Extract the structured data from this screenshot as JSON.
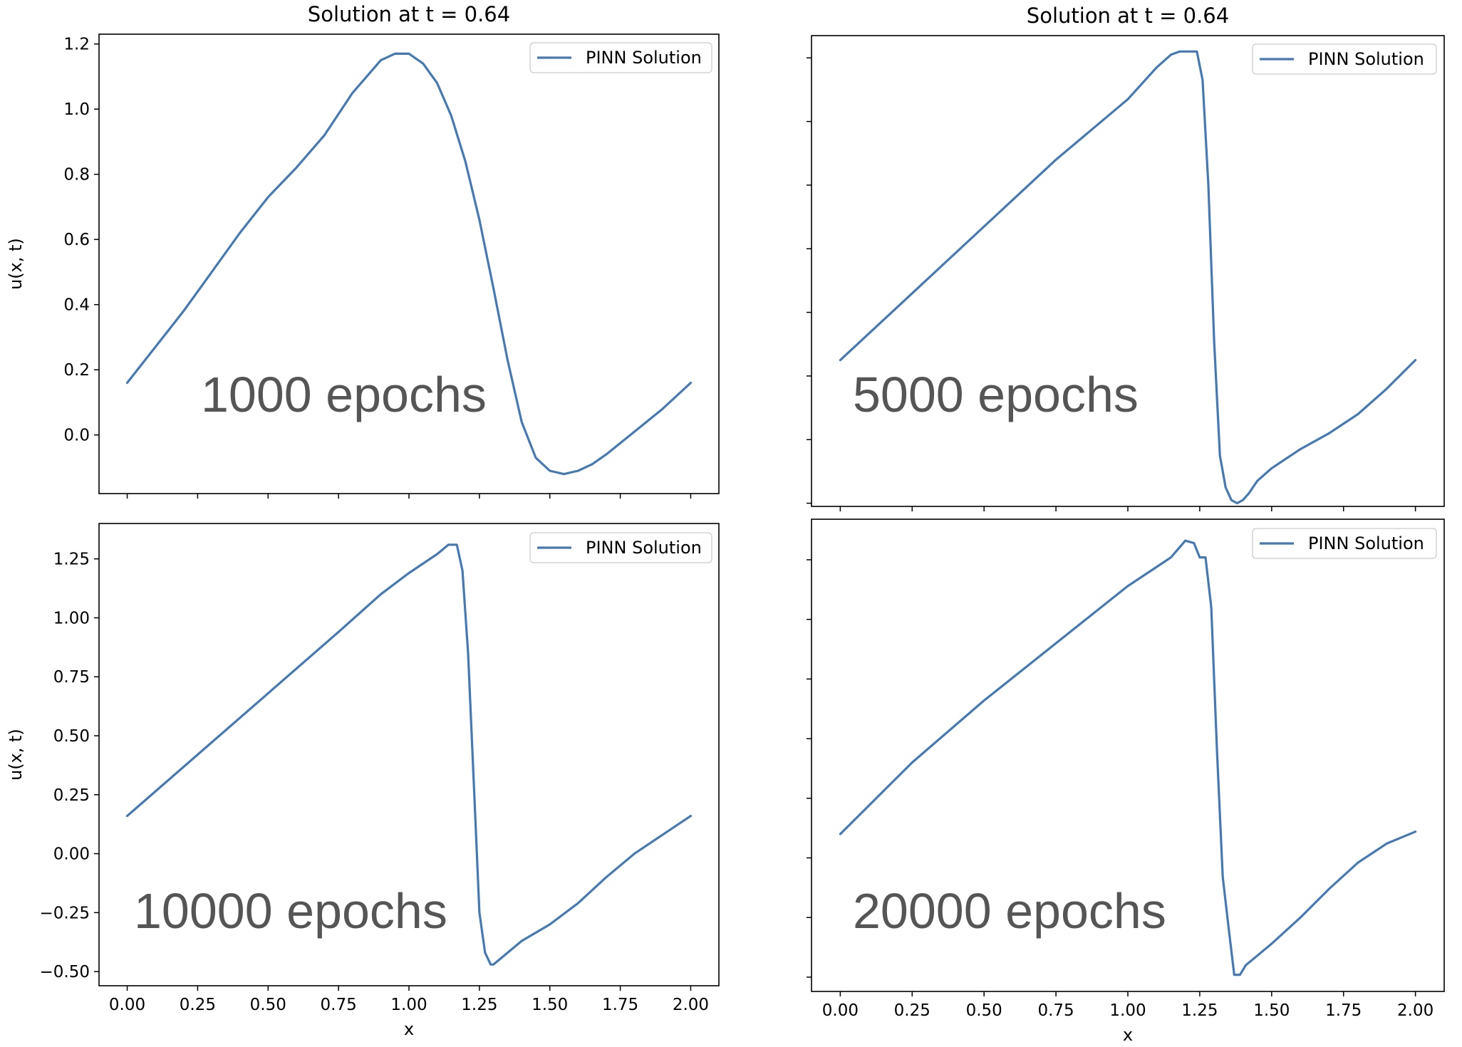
{
  "chart_data": [
    {
      "type": "line",
      "title": "Solution at t = 0.64",
      "xlabel": "",
      "ylabel": "u(x, t)",
      "xlim": [
        -0.1,
        2.1
      ],
      "ylim": [
        -0.18,
        1.23
      ],
      "xticks": [
        0,
        0.25,
        0.5,
        0.75,
        1.0,
        1.25,
        1.5,
        1.75,
        2.0
      ],
      "xtick_labels": [],
      "yticks": [
        0.0,
        0.2,
        0.4,
        0.6,
        0.8,
        1.0,
        1.2
      ],
      "ytick_labels": [
        "0.0",
        "0.2",
        "0.4",
        "0.6",
        "0.8",
        "1.0",
        "1.2"
      ],
      "legend": {
        "label": "PINN Solution",
        "placement": "upper right"
      },
      "annotation": "1000 epochs",
      "series": [
        {
          "name": "PINN Solution",
          "color": "#4479b3",
          "x": [
            0,
            0.1,
            0.2,
            0.3,
            0.4,
            0.5,
            0.6,
            0.7,
            0.8,
            0.9,
            0.95,
            1.0,
            1.05,
            1.1,
            1.15,
            1.2,
            1.25,
            1.3,
            1.35,
            1.4,
            1.45,
            1.5,
            1.55,
            1.6,
            1.65,
            1.7,
            1.8,
            1.9,
            2.0
          ],
          "y": [
            0.16,
            0.27,
            0.38,
            0.5,
            0.62,
            0.73,
            0.82,
            0.92,
            1.05,
            1.15,
            1.17,
            1.17,
            1.14,
            1.08,
            0.98,
            0.84,
            0.66,
            0.45,
            0.23,
            0.04,
            -0.07,
            -0.11,
            -0.12,
            -0.11,
            -0.09,
            -0.06,
            0.01,
            0.08,
            0.16
          ]
        }
      ]
    },
    {
      "type": "line",
      "title": "Solution at t = 0.64",
      "xlabel": "",
      "ylabel": "",
      "xlim": [
        -0.1,
        2.1
      ],
      "ylim": [
        -0.16,
        1.32
      ],
      "xticks": [
        0,
        0.25,
        0.5,
        0.75,
        1.0,
        1.25,
        1.5,
        1.75,
        2.0
      ],
      "xtick_labels": [],
      "yticks": [
        -0.15,
        0.05,
        0.25,
        0.45,
        0.65,
        0.85,
        1.05,
        1.25
      ],
      "ytick_labels": [],
      "legend": {
        "label": "PINN Solution",
        "placement": "upper right"
      },
      "annotation": "5000 epochs",
      "series": [
        {
          "name": "PINN Solution",
          "color": "#4479b3",
          "x": [
            0,
            0.25,
            0.5,
            0.75,
            1.0,
            1.1,
            1.15,
            1.18,
            1.2,
            1.22,
            1.24,
            1.26,
            1.28,
            1.3,
            1.32,
            1.34,
            1.36,
            1.38,
            1.4,
            1.42,
            1.45,
            1.5,
            1.6,
            1.7,
            1.8,
            1.9,
            2.0
          ],
          "y": [
            0.3,
            0.51,
            0.72,
            0.93,
            1.12,
            1.22,
            1.26,
            1.27,
            1.27,
            1.27,
            1.27,
            1.18,
            0.85,
            0.36,
            0.0,
            -0.1,
            -0.14,
            -0.15,
            -0.14,
            -0.12,
            -0.08,
            -0.04,
            0.02,
            0.07,
            0.13,
            0.21,
            0.3
          ]
        }
      ]
    },
    {
      "type": "line",
      "title": "",
      "xlabel": "x",
      "ylabel": "u(x, t)",
      "xlim": [
        -0.1,
        2.1
      ],
      "ylim": [
        -0.56,
        1.4
      ],
      "xticks": [
        0,
        0.25,
        0.5,
        0.75,
        1.0,
        1.25,
        1.5,
        1.75,
        2.0
      ],
      "xtick_labels": [
        "0.00",
        "0.25",
        "0.50",
        "0.75",
        "1.00",
        "1.25",
        "1.50",
        "1.75",
        "2.00"
      ],
      "yticks": [
        -0.5,
        -0.25,
        0.0,
        0.25,
        0.5,
        0.75,
        1.0,
        1.25
      ],
      "ytick_labels": [
        "−0.50",
        "−0.25",
        "0.00",
        "0.25",
        "0.50",
        "0.75",
        "1.00",
        "1.25"
      ],
      "legend": {
        "label": "PINN Solution",
        "placement": "upper right"
      },
      "annotation": "10000 epochs",
      "series": [
        {
          "name": "PINN Solution",
          "color": "#4479b3",
          "x": [
            0,
            0.25,
            0.5,
            0.75,
            0.9,
            1.0,
            1.1,
            1.14,
            1.17,
            1.19,
            1.21,
            1.23,
            1.25,
            1.27,
            1.29,
            1.3,
            1.32,
            1.35,
            1.4,
            1.5,
            1.6,
            1.7,
            1.8,
            1.9,
            2.0
          ],
          "y": [
            0.16,
            0.42,
            0.68,
            0.94,
            1.1,
            1.19,
            1.27,
            1.31,
            1.31,
            1.2,
            0.85,
            0.3,
            -0.25,
            -0.42,
            -0.47,
            -0.47,
            -0.45,
            -0.42,
            -0.37,
            -0.3,
            -0.21,
            -0.1,
            0.0,
            0.08,
            0.16
          ]
        }
      ]
    },
    {
      "type": "line",
      "title": "",
      "xlabel": "x",
      "ylabel": "",
      "xlim": [
        -0.1,
        2.1
      ],
      "ylim": [
        -0.56,
        1.42
      ],
      "xticks": [
        0,
        0.25,
        0.5,
        0.75,
        1.0,
        1.25,
        1.5,
        1.75,
        2.0
      ],
      "xtick_labels": [
        "0.00",
        "0.25",
        "0.50",
        "0.75",
        "1.00",
        "1.25",
        "1.50",
        "1.75",
        "2.00"
      ],
      "yticks": [
        -0.5,
        -0.25,
        0.0,
        0.25,
        0.5,
        0.75,
        1.0,
        1.25
      ],
      "ytick_labels": [],
      "legend": {
        "label": "PINN Solution",
        "placement": "upper right"
      },
      "annotation": "20000 epochs",
      "series": [
        {
          "name": "PINN Solution",
          "color": "#4479b3",
          "x": [
            0,
            0.25,
            0.5,
            0.75,
            1.0,
            1.1,
            1.15,
            1.2,
            1.23,
            1.25,
            1.27,
            1.29,
            1.31,
            1.33,
            1.35,
            1.37,
            1.39,
            1.41,
            1.45,
            1.5,
            1.6,
            1.7,
            1.8,
            1.9,
            2.0
          ],
          "y": [
            0.1,
            0.4,
            0.66,
            0.9,
            1.14,
            1.22,
            1.26,
            1.33,
            1.32,
            1.26,
            1.26,
            1.05,
            0.45,
            -0.08,
            -0.29,
            -0.49,
            -0.49,
            -0.45,
            -0.41,
            -0.36,
            -0.25,
            -0.13,
            -0.02,
            0.06,
            0.11
          ]
        }
      ]
    }
  ]
}
